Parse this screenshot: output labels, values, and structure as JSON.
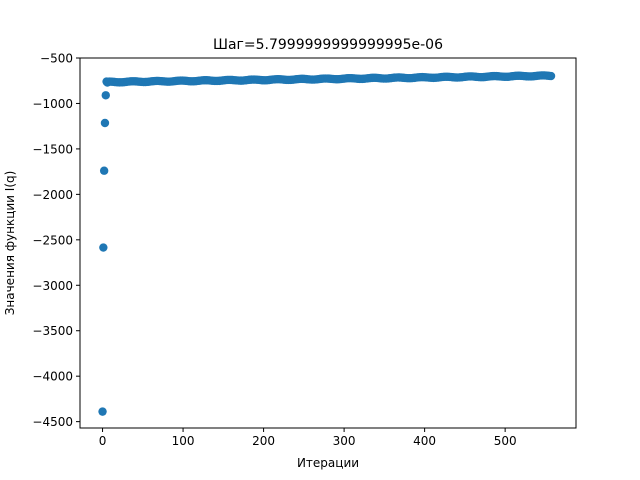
{
  "chart_data": {
    "type": "scatter",
    "title": "Шаг=5.7999999999999995e-06",
    "xlabel": "Итерации",
    "ylabel": "Значения функции I(q)",
    "xlim": [
      -28,
      588
    ],
    "ylim": [
      -4570,
      -500
    ],
    "x_ticks": [
      0,
      100,
      200,
      300,
      400,
      500
    ],
    "y_ticks": [
      -4500,
      -4000,
      -3500,
      -3000,
      -2500,
      -2000,
      -1500,
      -1000,
      -500
    ],
    "grid": false,
    "legend": "none",
    "marker_color": "#1f77b4",
    "series": [
      {
        "early_points": {
          "x": [
            0,
            1,
            2,
            3,
            4,
            5,
            6
          ],
          "y": [
            -4390,
            -2585,
            -1740,
            -1215,
            -910,
            -760,
            -770
          ]
        },
        "trend": {
          "x_start": 7,
          "x_end": 557,
          "step": 2,
          "y_start": -765,
          "y_end": -695
        }
      }
    ]
  }
}
